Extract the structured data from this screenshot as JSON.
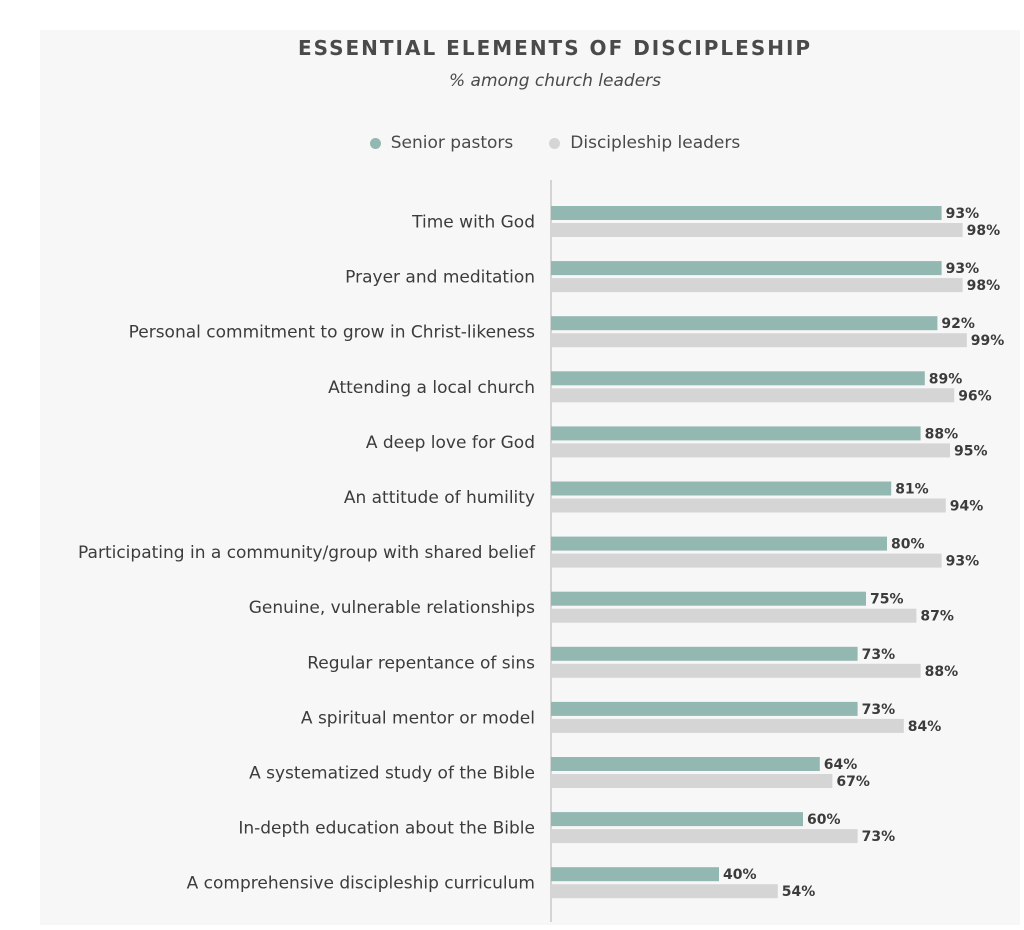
{
  "colors": {
    "senior_pastors": "#93b8b1",
    "discipleship_leaders": "#d5d5d5",
    "axis": "#c8c8c8"
  },
  "chart_data": {
    "type": "bar",
    "orientation": "horizontal",
    "title": "ESSENTIAL ELEMENTS OF DISCIPLESHIP",
    "subtitle": "% among church leaders",
    "legend_position": "top-center",
    "xlim": [
      0,
      100
    ],
    "grid": false,
    "categories": [
      "Time with God",
      "Prayer and meditation",
      "Personal commitment to grow in Christ-likeness",
      "Attending a local church",
      "A deep love for God",
      "An attitude of humility",
      "Participating in a community/group with shared belief",
      "Genuine, vulnerable relationships",
      "Regular repentance of sins",
      "A spiritual mentor or model",
      "A systematized study of the Bible",
      "In-depth education about the Bible",
      "A comprehensive discipleship curriculum"
    ],
    "series": [
      {
        "name": "Senior pastors",
        "values": [
          93,
          93,
          92,
          89,
          88,
          81,
          80,
          75,
          73,
          73,
          64,
          60,
          40
        ],
        "labels": [
          "93%",
          "93%",
          "92%",
          "89%",
          "88%",
          "81%",
          "80%",
          "75%",
          "73%",
          "73%",
          "64%",
          "60%",
          "40%"
        ]
      },
      {
        "name": "Discipleship leaders",
        "values": [
          98,
          98,
          99,
          96,
          95,
          94,
          93,
          87,
          88,
          84,
          67,
          73,
          54
        ],
        "labels": [
          "98%",
          "98%",
          "99%",
          "96%",
          "95%",
          "94%",
          "93%",
          "87%",
          "88%",
          "84%",
          "67%",
          "73%",
          "54%"
        ]
      }
    ]
  }
}
